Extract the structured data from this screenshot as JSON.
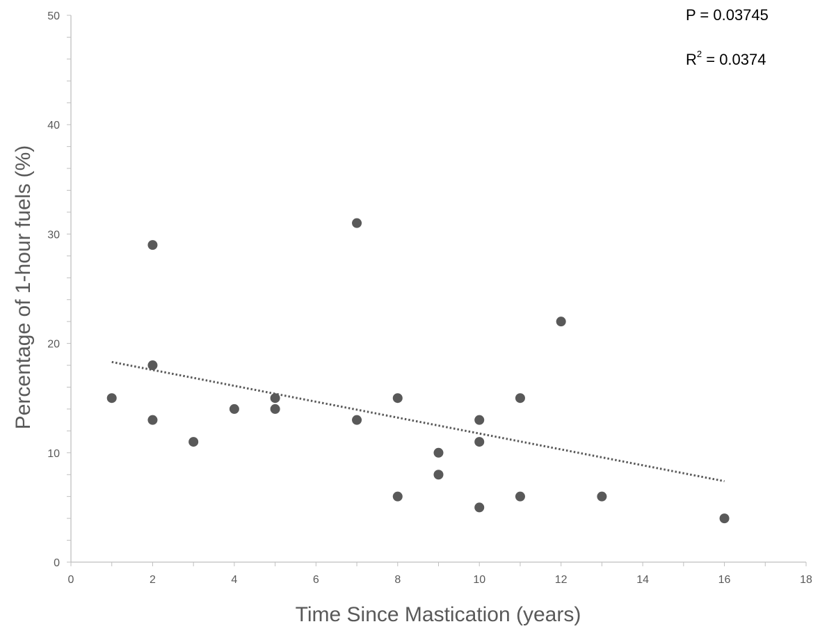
{
  "chart_data": {
    "type": "scatter",
    "xlabel": "Time Since Mastication (years)",
    "ylabel": "Percentage of 1-hour fuels (%)",
    "xlim": [
      0,
      18
    ],
    "ylim": [
      0,
      50
    ],
    "x_ticks": [
      0,
      2,
      4,
      6,
      8,
      10,
      12,
      14,
      16,
      18
    ],
    "y_ticks": [
      0,
      10,
      20,
      30,
      40,
      50
    ],
    "grid": false,
    "points": [
      {
        "x": 1,
        "y": 15
      },
      {
        "x": 2,
        "y": 29
      },
      {
        "x": 2,
        "y": 18
      },
      {
        "x": 2,
        "y": 13
      },
      {
        "x": 3,
        "y": 11
      },
      {
        "x": 4,
        "y": 14
      },
      {
        "x": 5,
        "y": 15
      },
      {
        "x": 5,
        "y": 14
      },
      {
        "x": 7,
        "y": 31
      },
      {
        "x": 7,
        "y": 13
      },
      {
        "x": 8,
        "y": 15
      },
      {
        "x": 8,
        "y": 6
      },
      {
        "x": 9,
        "y": 10
      },
      {
        "x": 9,
        "y": 8
      },
      {
        "x": 10,
        "y": 13
      },
      {
        "x": 10,
        "y": 11
      },
      {
        "x": 10,
        "y": 5
      },
      {
        "x": 11,
        "y": 15
      },
      {
        "x": 11,
        "y": 6
      },
      {
        "x": 12,
        "y": 22
      },
      {
        "x": 13,
        "y": 6
      },
      {
        "x": 16,
        "y": 4
      }
    ],
    "trendline": {
      "style": "dotted",
      "x_start": 1,
      "y_start": 18.3,
      "x_end": 16,
      "y_end": 7.4
    },
    "annotations": {
      "p_prefix": "P = ",
      "p_value": "0.03745",
      "r2_base": "R",
      "r2_sup": "2",
      "r2_rest": " = 0.0374"
    },
    "colors": {
      "marker": "#595959",
      "trendline": "#595959",
      "axis": "#bfbfbf",
      "text": "#595959"
    }
  }
}
